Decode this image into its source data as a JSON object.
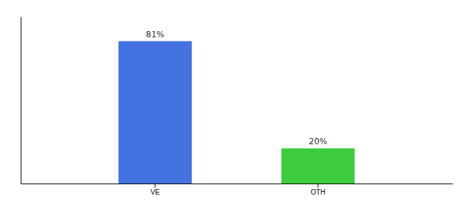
{
  "chart_data": {
    "type": "bar",
    "categories": [
      "VE",
      "OTH"
    ],
    "values": [
      81,
      20
    ],
    "value_labels": [
      "81%",
      "20%"
    ],
    "colors": [
      "#4472e0",
      "#3dcc3d"
    ],
    "data_labels": true,
    "ylim": [
      0,
      95
    ],
    "tick_labels": "x"
  }
}
